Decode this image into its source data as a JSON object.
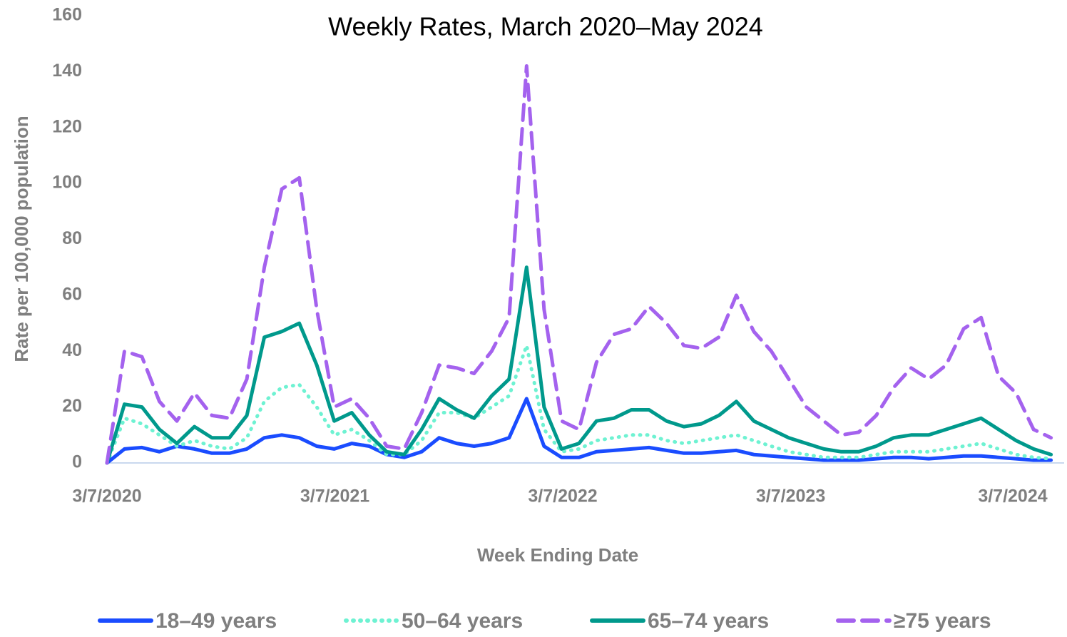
{
  "chart_data": {
    "type": "line",
    "title": "Weekly Rates, March 2020–May 2024",
    "x_label": "Week Ending Date",
    "y_label": "Rate per 100,000 population",
    "x": [
      "3/7/2020",
      "4/4/2020",
      "5/2/2020",
      "5/30/2020",
      "6/27/2020",
      "7/25/2020",
      "8/22/2020",
      "9/19/2020",
      "10/17/2020",
      "11/14/2020",
      "12/12/2020",
      "1/9/2021",
      "2/6/2021",
      "3/6/2021",
      "4/3/2021",
      "5/1/2021",
      "5/29/2021",
      "6/26/2021",
      "7/24/2021",
      "8/21/2021",
      "9/18/2021",
      "10/16/2021",
      "11/13/2021",
      "12/11/2021",
      "1/8/2022",
      "2/5/2022",
      "3/5/2022",
      "4/2/2022",
      "4/30/2022",
      "5/28/2022",
      "6/25/2022",
      "7/23/2022",
      "8/20/2022",
      "9/17/2022",
      "10/15/2022",
      "11/12/2022",
      "12/10/2022",
      "1/7/2023",
      "2/4/2023",
      "3/4/2023",
      "4/1/2023",
      "4/29/2023",
      "5/27/2023",
      "6/24/2023",
      "7/22/2023",
      "8/19/2023",
      "9/16/2023",
      "10/14/2023",
      "11/11/2023",
      "12/9/2023",
      "1/6/2024",
      "2/3/2024",
      "3/2/2024",
      "3/30/2024",
      "4/27/2024"
    ],
    "xlim": [
      "3/7/2020",
      "5/18/2024"
    ],
    "xticks": [
      "3/7/2020",
      "3/7/2021",
      "3/7/2022",
      "3/7/2023",
      "3/7/2024"
    ],
    "ylim": [
      0,
      160
    ],
    "yticks": [
      0,
      20,
      40,
      60,
      80,
      100,
      120,
      140,
      160
    ],
    "grid": false,
    "legend": "bottom",
    "series": [
      {
        "name": "18–49 years",
        "color": "#1a4cff",
        "dash": "solid",
        "values": [
          0,
          5,
          5.5,
          4,
          6,
          5,
          3.5,
          3.5,
          5,
          9,
          10,
          9,
          6,
          5,
          7,
          6,
          3,
          2,
          4,
          9,
          7,
          6,
          7,
          9,
          23,
          6,
          2,
          2,
          4,
          4.5,
          5,
          5.5,
          4.5,
          3.5,
          3.5,
          4,
          4.5,
          3,
          2.5,
          2,
          1.5,
          1,
          1,
          1,
          1.5,
          2,
          2,
          1.5,
          2,
          2.5,
          2.5,
          2,
          1.5,
          1,
          1
        ]
      },
      {
        "name": "50–64 years",
        "color": "#6ef2d2",
        "dash": "dotted",
        "values": [
          0,
          16,
          14,
          10,
          6,
          8,
          6,
          5,
          9,
          22,
          27,
          28,
          20,
          10,
          12,
          8,
          3,
          3,
          8,
          18,
          18,
          16,
          20,
          24,
          42,
          12,
          4,
          5,
          8,
          9,
          10,
          10,
          8,
          7,
          8,
          9,
          10,
          8,
          6,
          4,
          3,
          2,
          2,
          2,
          3,
          4,
          4,
          4,
          5,
          6,
          7,
          5,
          3,
          2,
          1.5
        ]
      },
      {
        "name": "65–74 years",
        "color": "#00998c",
        "dash": "solid",
        "values": [
          0,
          21,
          20,
          12,
          7,
          13,
          9,
          9,
          17,
          45,
          47,
          50,
          35,
          15,
          18,
          10,
          4,
          3,
          12,
          23,
          19,
          16,
          24,
          30,
          70,
          20,
          5,
          7,
          15,
          16,
          19,
          19,
          15,
          13,
          14,
          17,
          22,
          15,
          12,
          9,
          7,
          5,
          4,
          4,
          6,
          9,
          10,
          10,
          12,
          14,
          16,
          12,
          8,
          5,
          3
        ]
      },
      {
        "name": "≥75 years",
        "color": "#a462ee",
        "dash": "dashed",
        "values": [
          0,
          40,
          38,
          22,
          15,
          25,
          17,
          16,
          30,
          70,
          98,
          102,
          55,
          20,
          23,
          16,
          6,
          5,
          18,
          35,
          34,
          32,
          40,
          52,
          142,
          55,
          15,
          12,
          36,
          46,
          48,
          56,
          50,
          42,
          41,
          45,
          60,
          47,
          40,
          30,
          20,
          15,
          10,
          11,
          17,
          27,
          34,
          30,
          35,
          48,
          52,
          31,
          25,
          12,
          9
        ]
      }
    ]
  }
}
